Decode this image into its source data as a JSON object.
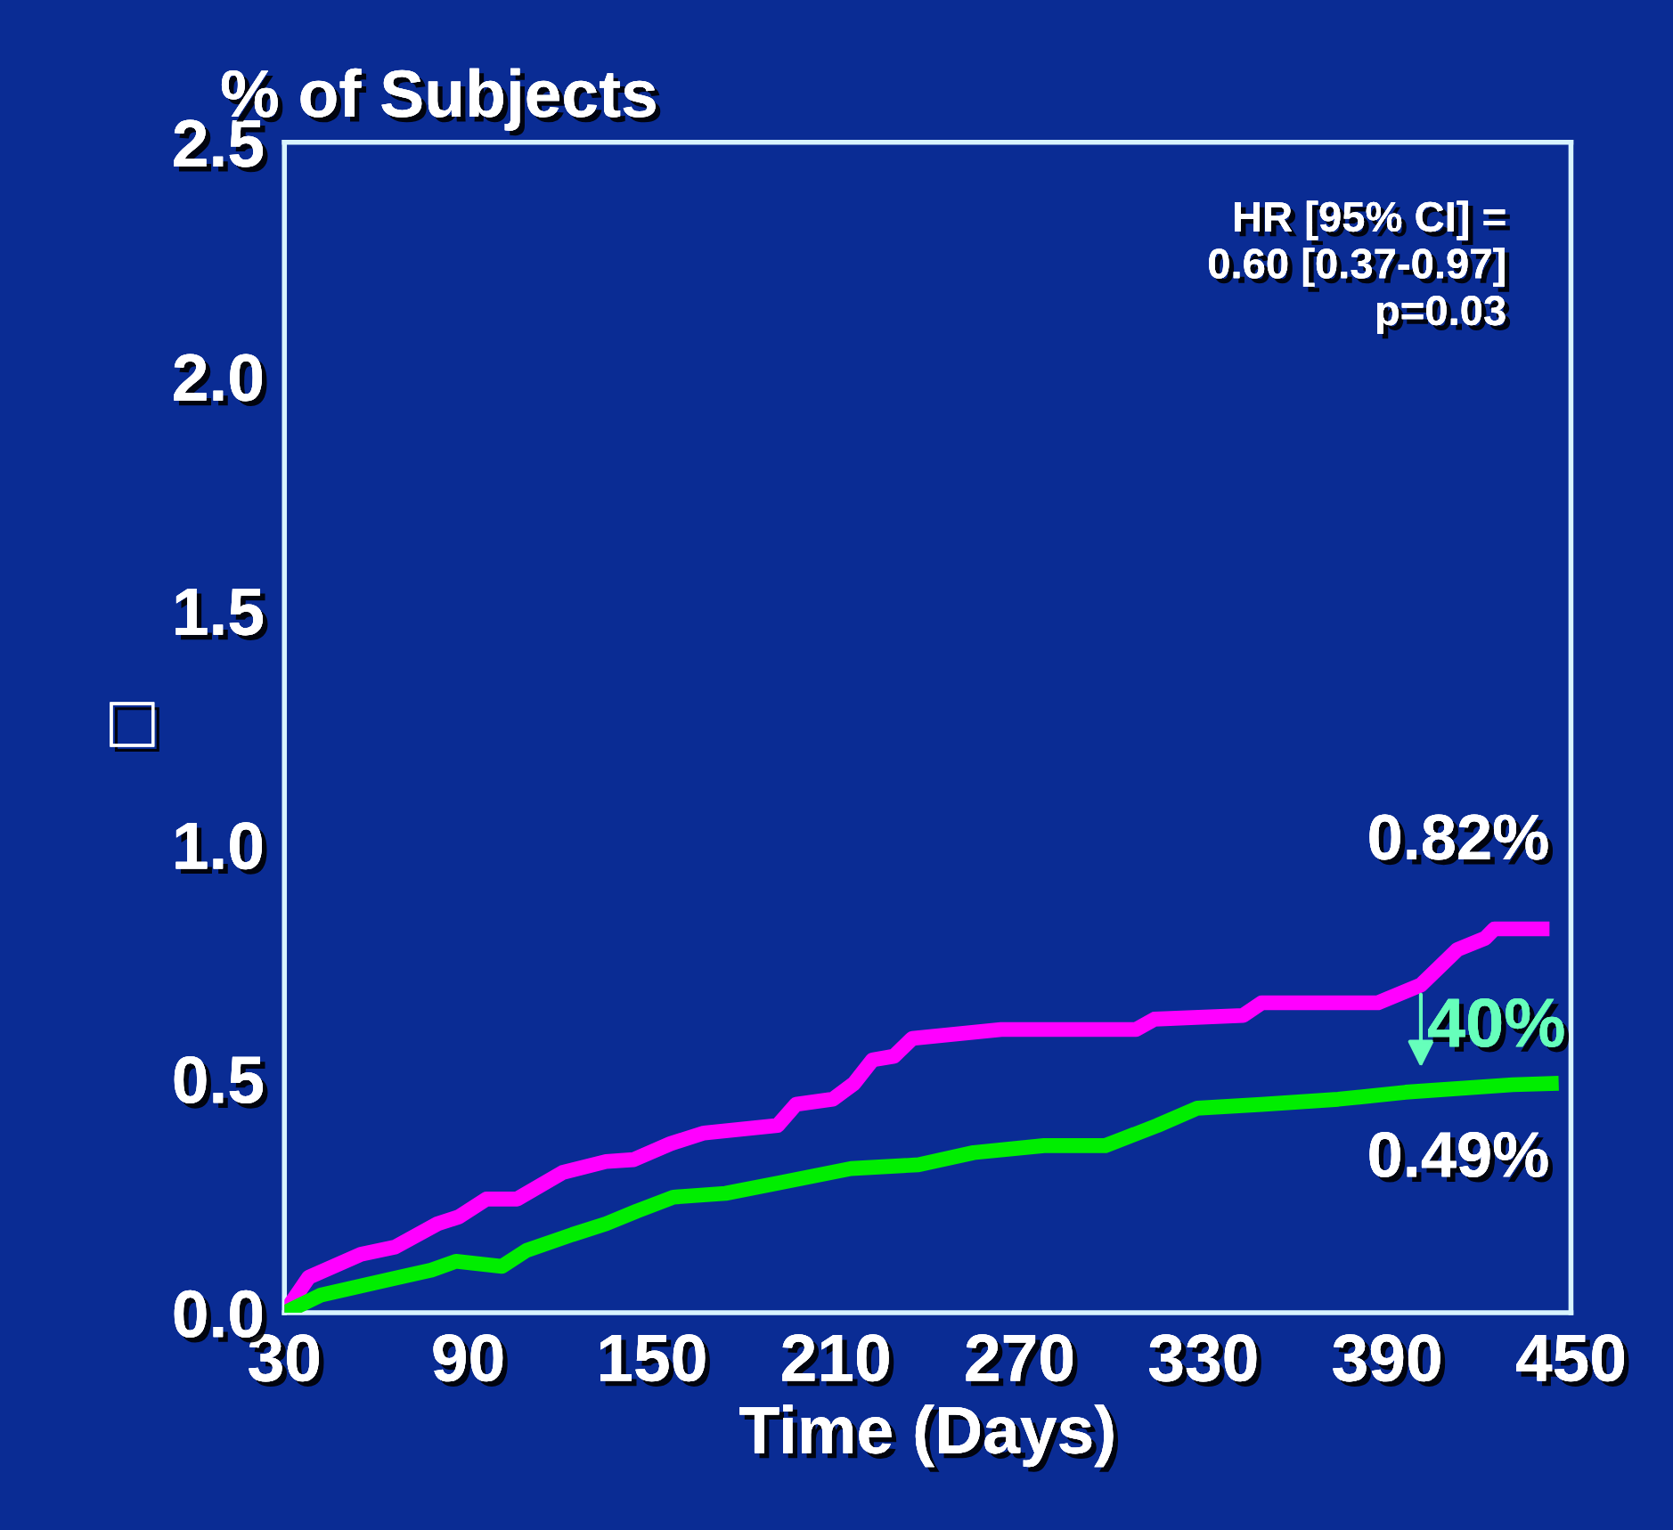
{
  "chart_data": {
    "type": "line",
    "title": "% of Subjects",
    "xlabel": "Time (Days)",
    "ylabel": "□",
    "xlim": [
      30,
      450
    ],
    "xticks": [
      30,
      90,
      150,
      210,
      270,
      330,
      390,
      450
    ],
    "ylim": [
      0,
      2.5
    ],
    "yticks": [
      {
        "value": 0,
        "label": "0.0"
      },
      0.5,
      {
        "value": 1,
        "label": "1.0"
      },
      1.5,
      {
        "value": 2,
        "label": "2.0"
      },
      2.5
    ],
    "grid": false,
    "legend": false,
    "line_style": "solid",
    "marker": "none",
    "series": [
      {
        "color": "#ff00ff",
        "x": [
          30,
          38,
          55,
          66,
          80,
          87,
          96,
          106,
          112,
          121,
          135,
          144,
          156,
          167,
          191,
          197,
          209,
          216,
          222,
          229,
          235,
          264,
          308,
          314,
          343,
          349,
          387,
          401,
          413,
          422,
          425,
          443
        ],
        "values": [
          0,
          0.076,
          0.125,
          0.14,
          0.19,
          0.205,
          0.243,
          0.243,
          0.266,
          0.3,
          0.323,
          0.327,
          0.361,
          0.384,
          0.4,
          0.445,
          0.456,
          0.49,
          0.54,
          0.548,
          0.586,
          0.605,
          0.605,
          0.627,
          0.635,
          0.662,
          0.662,
          0.7,
          0.776,
          0.8,
          0.82,
          0.82
        ]
      },
      {
        "color": "#00ee00",
        "x": [
          30,
          42,
          65,
          78,
          86,
          101,
          109,
          124,
          135,
          145,
          157,
          174,
          192,
          215,
          237,
          255,
          278,
          298,
          315,
          328,
          349,
          374,
          396,
          431,
          446
        ],
        "values": [
          0,
          0.038,
          0.072,
          0.091,
          0.11,
          0.099,
          0.133,
          0.167,
          0.19,
          0.217,
          0.247,
          0.255,
          0.278,
          0.308,
          0.316,
          0.342,
          0.357,
          0.357,
          0.4,
          0.437,
          0.445,
          0.456,
          0.471,
          0.487,
          0.49
        ]
      }
    ],
    "annotations": [
      "HR [95% CI] =\n0.60 [0.37-0.97]\np=0.03",
      {
        "text": "0.82%",
        "x": 443,
        "y": 0.82
      },
      {
        "text": "0.49%",
        "x": 446,
        "y": 0.49
      },
      {
        "text": "40%",
        "x": 401,
        "y": 0.7
      }
    ]
  }
}
